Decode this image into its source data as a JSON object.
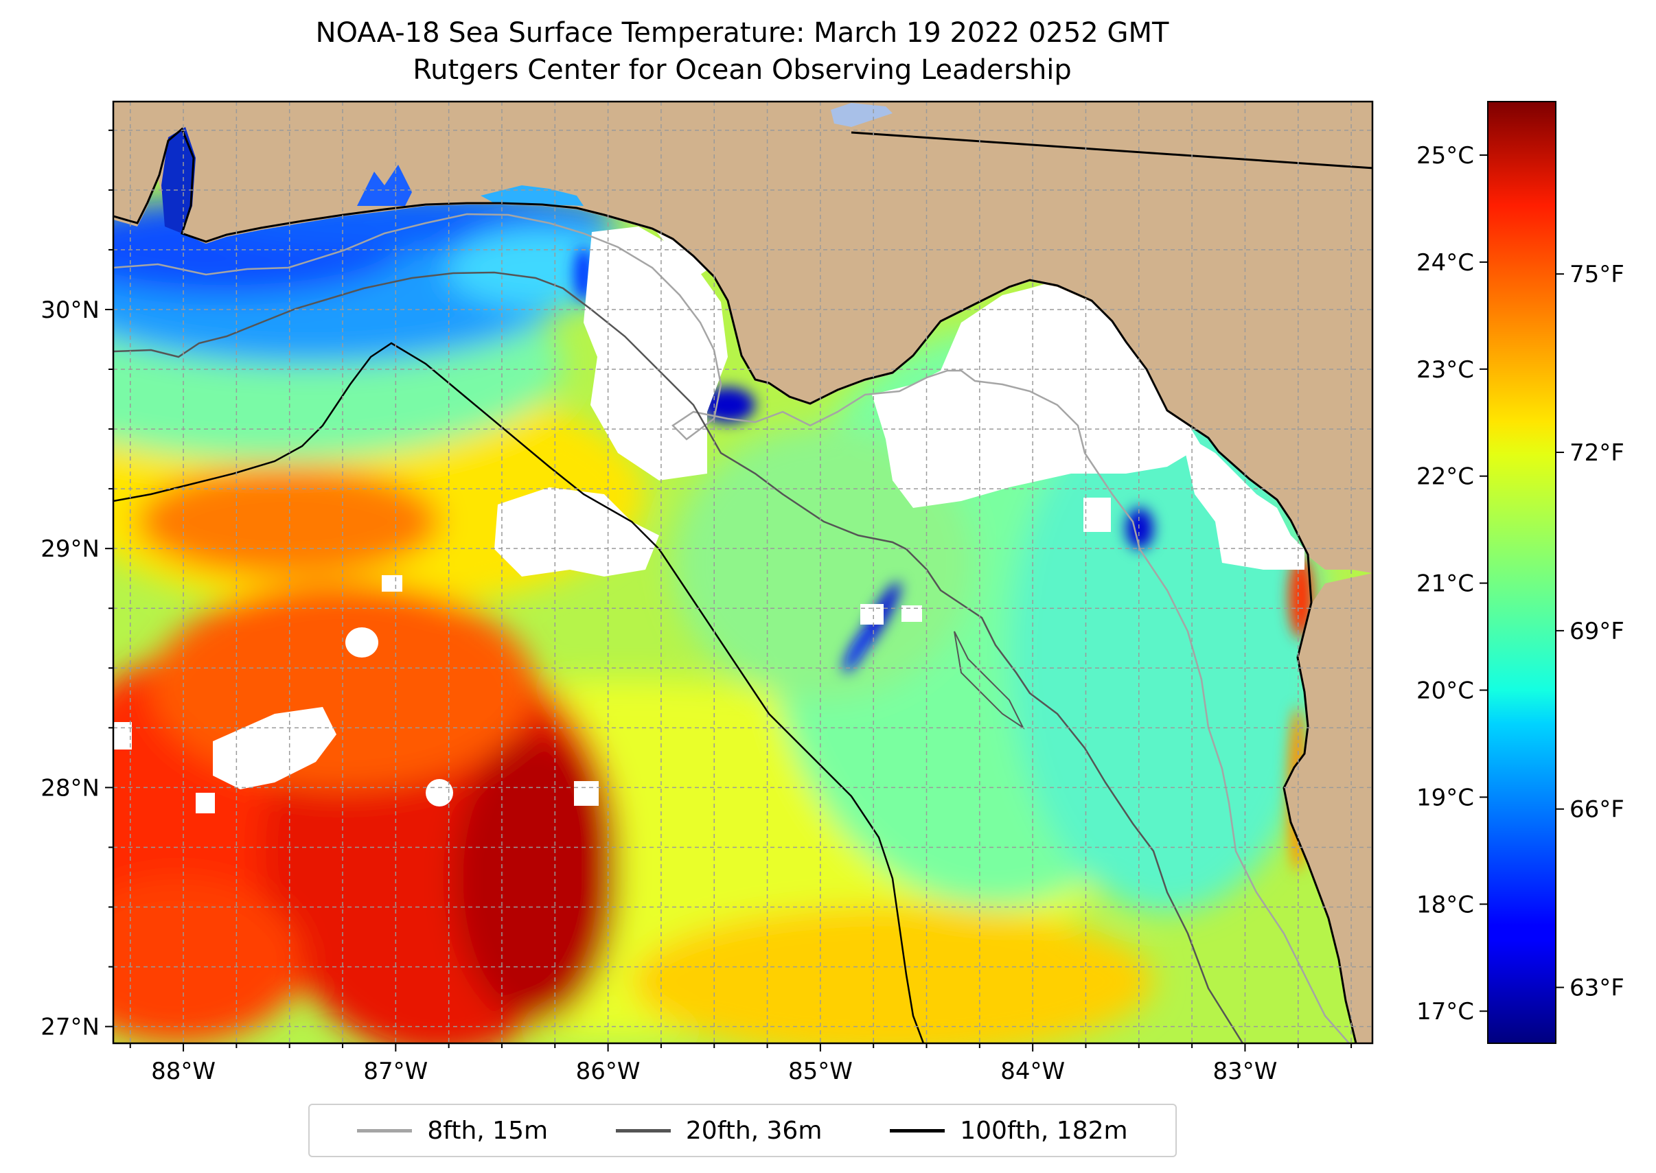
{
  "title": "NOAA-18 Sea Surface Temperature: March 19 2022 0252 GMT",
  "subtitle": "Rutgers Center for Ocean Observing Leadership",
  "colors": {
    "land": "#d1b28d",
    "no_data": "#ffffff",
    "colormap": "jet"
  },
  "lat_ticks": [
    "30°N",
    "29°N",
    "28°N",
    "27°N"
  ],
  "lon_ticks": [
    "88°W",
    "87°W",
    "86°W",
    "85°W",
    "84°W",
    "83°W"
  ],
  "colorbar": {
    "celsius_ticks": [
      "25°C",
      "24°C",
      "23°C",
      "22°C",
      "21°C",
      "20°C",
      "19°C",
      "18°C",
      "17°C"
    ],
    "fahrenheit_ticks": [
      "75°F",
      "72°F",
      "69°F",
      "66°F",
      "63°F"
    ]
  },
  "legend": [
    {
      "label": "8fth, 15m",
      "color": "#a5a5a5"
    },
    {
      "label": "20fth, 36m",
      "color": "#555555"
    },
    {
      "label": "100fth, 182m",
      "color": "#000000"
    }
  ],
  "chart_data": {
    "type": "heatmap",
    "title": "NOAA-18 Sea Surface Temperature: March 19 2022 0252 GMT",
    "subtitle": "Rutgers Center for Ocean Observing Leadership",
    "x_range_deg_w": [
      88.33,
      82.4
    ],
    "y_range_deg_n": [
      26.93,
      30.87
    ],
    "color_range_c": [
      16.7,
      25.5
    ],
    "grid": true,
    "legend_position": "bottom"
  }
}
